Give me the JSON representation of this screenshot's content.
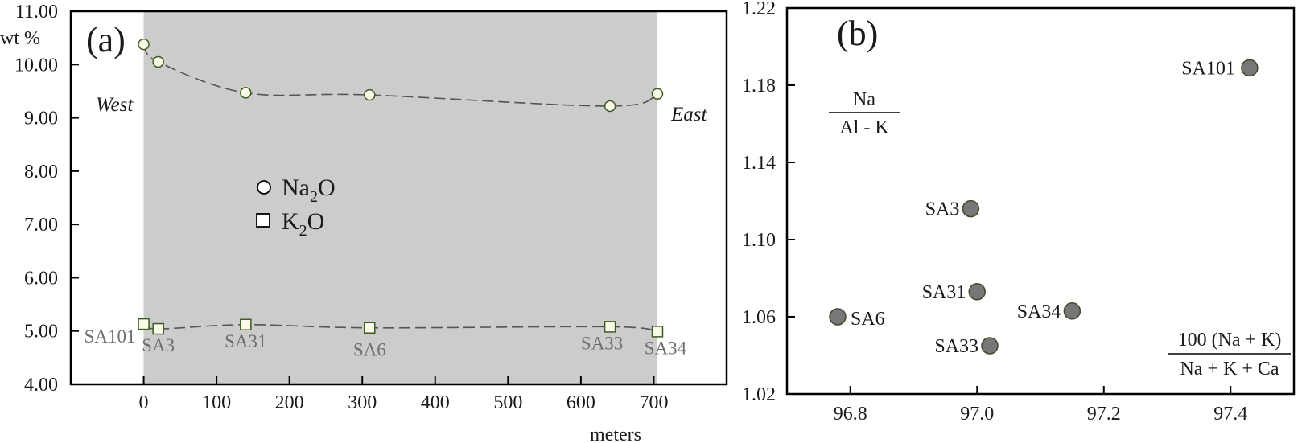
{
  "chart_data": [
    {
      "type": "line",
      "panel_label": "(a)",
      "ylabel": "wt %",
      "xlabel": "meters",
      "ylim": [
        4.0,
        11.0
      ],
      "xlim": [
        -100,
        800
      ],
      "yticks": [
        "4.00",
        "5.00",
        "6.00",
        "7.00",
        "8.00",
        "9.00",
        "10.00",
        "11.00"
      ],
      "xticks": [
        "0",
        "100",
        "200",
        "300",
        "400",
        "500",
        "600",
        "700"
      ],
      "shaded_region": [
        0,
        705
      ],
      "shade_color": "#cccccc",
      "annotations": {
        "west": "West",
        "east": "East"
      },
      "legend": {
        "na2o": {
          "prefix": "Na",
          "sub": "2",
          "suffix": "O"
        },
        "k2o": {
          "prefix": "K",
          "sub": "2",
          "suffix": "O"
        }
      },
      "series": [
        {
          "name": "Na2O",
          "marker": "circle",
          "x": [
            0,
            20,
            140,
            310,
            640,
            705
          ],
          "y": [
            10.38,
            10.05,
            9.47,
            9.43,
            9.22,
            9.45
          ]
        },
        {
          "name": "K2O",
          "marker": "square",
          "labels": [
            "SA101",
            "SA3",
            "SA31",
            "SA6",
            "SA33",
            "SA34"
          ],
          "x": [
            0,
            20,
            140,
            310,
            640,
            705
          ],
          "y": [
            5.13,
            5.04,
            5.12,
            5.06,
            5.08,
            4.99
          ]
        }
      ]
    },
    {
      "type": "scatter",
      "panel_label": "(b)",
      "xlim": [
        96.7,
        97.5
      ],
      "ylim": [
        1.02,
        1.22
      ],
      "xticks": [
        "96.8",
        "97.0",
        "97.2",
        "97.4"
      ],
      "yticks": [
        "1.02",
        "1.06",
        "1.10",
        "1.14",
        "1.18",
        "1.22"
      ],
      "ylabel_numerator": "Na",
      "ylabel_denominator": "Al - K",
      "xlabel_numerator": "100 (Na + K)",
      "xlabel_denominator": "Na + K + Ca",
      "marker_color": "#777777",
      "points": [
        {
          "label": "SA101",
          "x": 97.43,
          "y": 1.189
        },
        {
          "label": "SA3",
          "x": 96.99,
          "y": 1.116
        },
        {
          "label": "SA31",
          "x": 97.0,
          "y": 1.073
        },
        {
          "label": "SA34",
          "x": 97.15,
          "y": 1.063
        },
        {
          "label": "SA6",
          "x": 96.78,
          "y": 1.06
        },
        {
          "label": "SA33",
          "x": 97.02,
          "y": 1.045
        }
      ]
    }
  ]
}
